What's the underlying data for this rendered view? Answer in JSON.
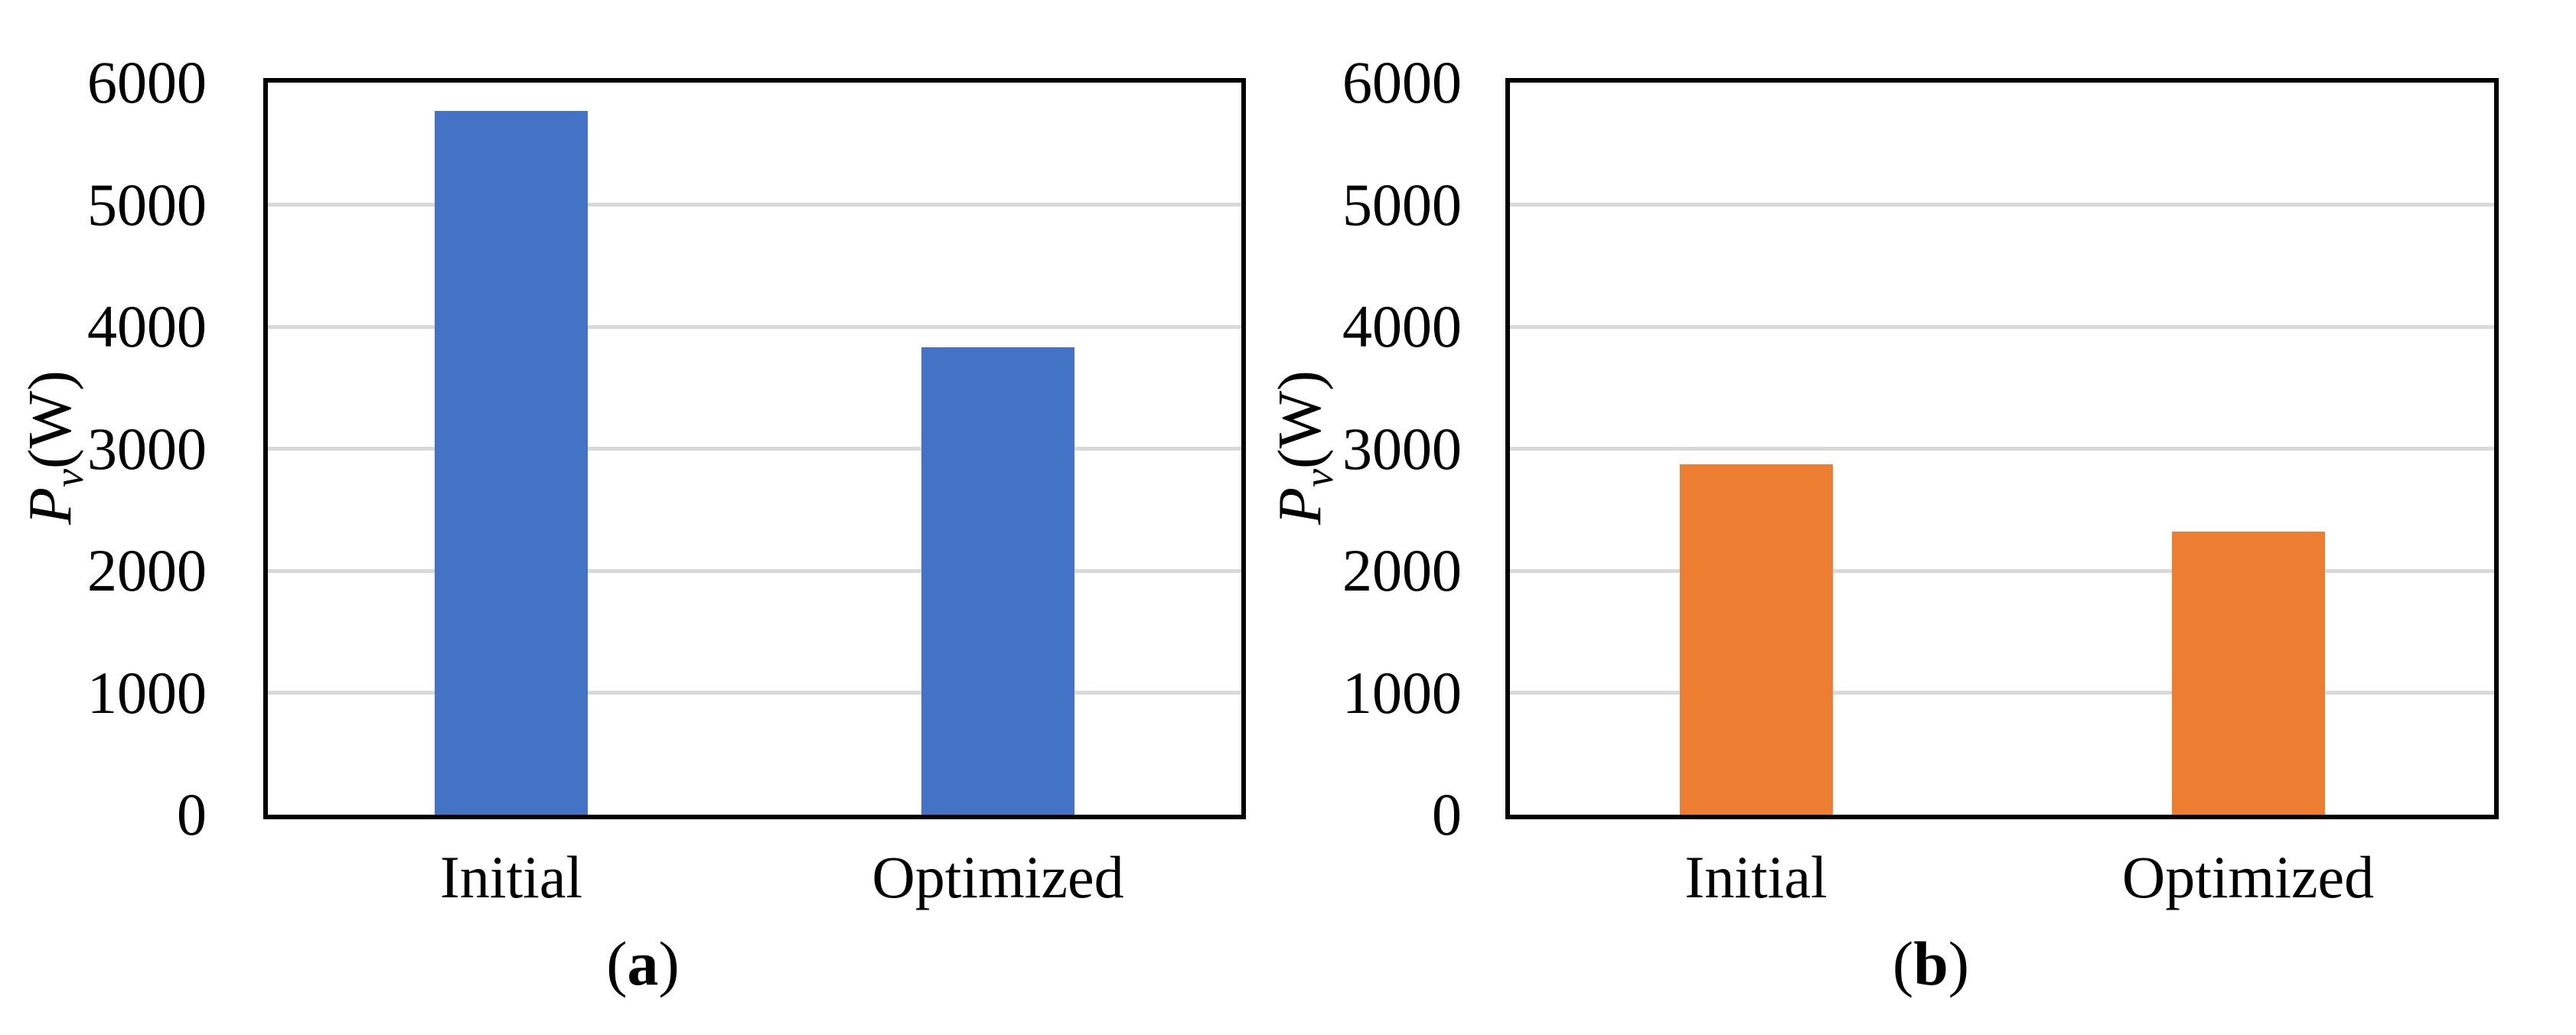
{
  "chart_data": [
    {
      "panel": "a",
      "type": "bar",
      "caption": {
        "open": "(",
        "letter": "a",
        "close": ")"
      },
      "categories": [
        "Initial",
        "Optimized"
      ],
      "values": [
        5770,
        3830
      ],
      "bar_color": "#4472C4",
      "ylabel_parts": {
        "symbol": "P",
        "subscript": "v",
        "unit": "(W)"
      },
      "ylim": [
        0,
        6000
      ],
      "yticks": [
        0,
        1000,
        2000,
        3000,
        4000,
        5000,
        6000
      ],
      "gridlines": [
        1000,
        2000,
        3000,
        4000,
        5000
      ],
      "gridline_color": "#D9D9D9",
      "axis_color": "#000000",
      "grid": "horizontal",
      "legend": "none"
    },
    {
      "panel": "b",
      "type": "bar",
      "caption": {
        "open": "(",
        "letter": "b",
        "close": ")"
      },
      "categories": [
        "Initial",
        "Optimized"
      ],
      "values": [
        2870,
        2320
      ],
      "bar_color": "#ED7D31",
      "ylabel_parts": {
        "symbol": "P",
        "subscript": "v",
        "unit": "(W)"
      },
      "ylim": [
        0,
        6000
      ],
      "yticks": [
        0,
        1000,
        2000,
        3000,
        4000,
        5000,
        6000
      ],
      "gridlines": [
        1000,
        2000,
        3000,
        4000,
        5000
      ],
      "gridline_color": "#D9D9D9",
      "axis_color": "#000000",
      "grid": "horizontal",
      "legend": "none"
    }
  ]
}
